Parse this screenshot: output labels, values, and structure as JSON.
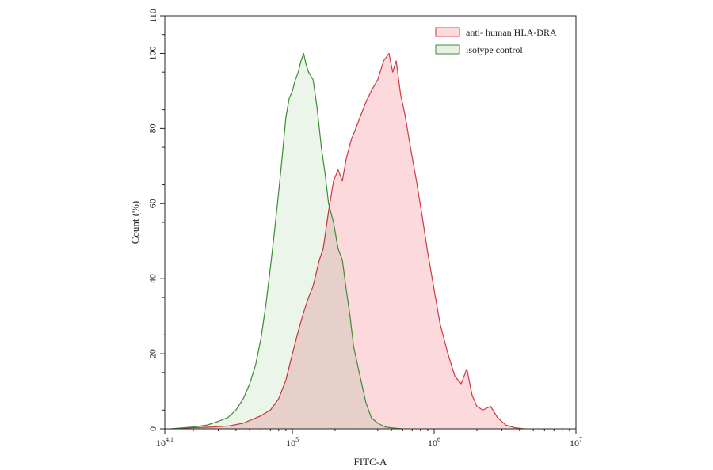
{
  "chart_data": {
    "type": "area",
    "title": "",
    "xlabel": "FITC-A",
    "ylabel": "Count  (%)",
    "x_scale": "log10",
    "xlim": [
      12589,
      10000000
    ],
    "ylim": [
      0,
      110
    ],
    "x_ticks": [
      {
        "value": 12589,
        "base": "10",
        "exp": "4.1"
      },
      {
        "value": 100000,
        "base": "10",
        "exp": "5"
      },
      {
        "value": 1000000,
        "base": "10",
        "exp": "6"
      },
      {
        "value": 10000000,
        "base": "10",
        "exp": "7"
      }
    ],
    "y_ticks": [
      0,
      20,
      40,
      60,
      80,
      100,
      110
    ],
    "grid": false,
    "legend": {
      "position": "top-right",
      "entries": [
        "anti- human HLA-DRA",
        "isotype control"
      ]
    },
    "series": [
      {
        "name": "anti- human HLA-DRA",
        "stroke": "#d0393e",
        "fill": "#fbd9dc",
        "x": [
          14000,
          20000,
          28000,
          36000,
          45000,
          52000,
          60000,
          70000,
          80000,
          90000,
          100000,
          110000,
          120000,
          130000,
          140000,
          155000,
          165000,
          180000,
          195000,
          210000,
          225000,
          240000,
          260000,
          280000,
          300000,
          330000,
          360000,
          400000,
          440000,
          480000,
          510000,
          540000,
          580000,
          620000,
          680000,
          750000,
          820000,
          900000,
          1000000,
          1100000,
          1250000,
          1400000,
          1550000,
          1700000,
          1850000,
          2000000,
          2200000,
          2500000,
          2800000,
          3200000,
          3700000,
          4300000
        ],
        "y": [
          0,
          0.3,
          0.5,
          0.8,
          1.5,
          2.5,
          3.5,
          5,
          8,
          13,
          20,
          26,
          31,
          35,
          38,
          45,
          48,
          58,
          66,
          69,
          66,
          72,
          77,
          80,
          83,
          87,
          90,
          93,
          98,
          100,
          95,
          98,
          89,
          84,
          75,
          66,
          57,
          47,
          37,
          28,
          20,
          14,
          12,
          16,
          9,
          6,
          5,
          6,
          3,
          1,
          0.3,
          0
        ]
      },
      {
        "name": "isotype control",
        "stroke": "#3d8b34",
        "fill": "#e6f1e3",
        "x": [
          14000,
          20000,
          25000,
          30000,
          35000,
          40000,
          45000,
          50000,
          55000,
          60000,
          65000,
          70000,
          75000,
          80000,
          85000,
          90000,
          95000,
          100000,
          105000,
          110000,
          115000,
          120000,
          125000,
          130000,
          140000,
          150000,
          160000,
          170000,
          180000,
          195000,
          210000,
          225000,
          240000,
          255000,
          270000,
          300000,
          330000,
          360000,
          400000,
          450000,
          520000,
          600000
        ],
        "y": [
          0,
          0.5,
          1,
          2,
          3,
          5,
          8,
          12,
          17,
          24,
          33,
          43,
          53,
          63,
          73,
          83,
          88,
          90,
          93,
          95,
          98,
          100,
          97,
          95,
          93,
          85,
          75,
          68,
          60,
          55,
          48,
          45,
          37,
          30,
          22,
          14,
          7,
          3,
          1.5,
          0.5,
          0.2,
          0
        ]
      }
    ]
  }
}
